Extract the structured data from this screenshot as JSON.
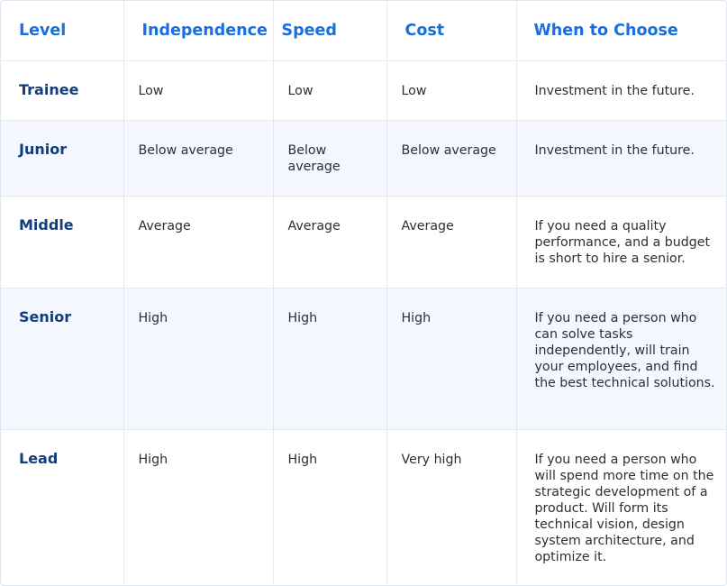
{
  "table": {
    "headers": {
      "level": "Level",
      "independence": "Independence",
      "speed": "Speed",
      "cost": "Cost",
      "when": "When to Choose"
    },
    "rows": [
      {
        "level": "Trainee",
        "independence": "Low",
        "speed": "Low",
        "cost": "Low",
        "when": "Investment in the future."
      },
      {
        "level": "Junior",
        "independence": "Below average",
        "speed": "Below average",
        "cost": "Below average",
        "when": "Investment in the future."
      },
      {
        "level": "Middle",
        "independence": "Average",
        "speed": "Average",
        "cost": "Average",
        "when": "If you need a quality performance, and a budget is short to hire a senior."
      },
      {
        "level": "Senior",
        "independence": "High",
        "speed": "High",
        "cost": "High",
        "when": "If you need a person who can solve tasks independently, will train your employees, and find the best technical solutions."
      },
      {
        "level": "Lead",
        "independence": "High",
        "speed": "High",
        "cost": "Very high",
        "when": "If you need a person who will spend more time on the strategic development of a product. Will form its technical vision, design system architecture, and optimize it."
      }
    ]
  },
  "colors": {
    "header_text": "#1a6fe0",
    "level_text": "#143d7a",
    "body_text": "#2b2f36",
    "alt_row_bg": "#f4f8fe",
    "grid_line": "#e3e9f2"
  }
}
